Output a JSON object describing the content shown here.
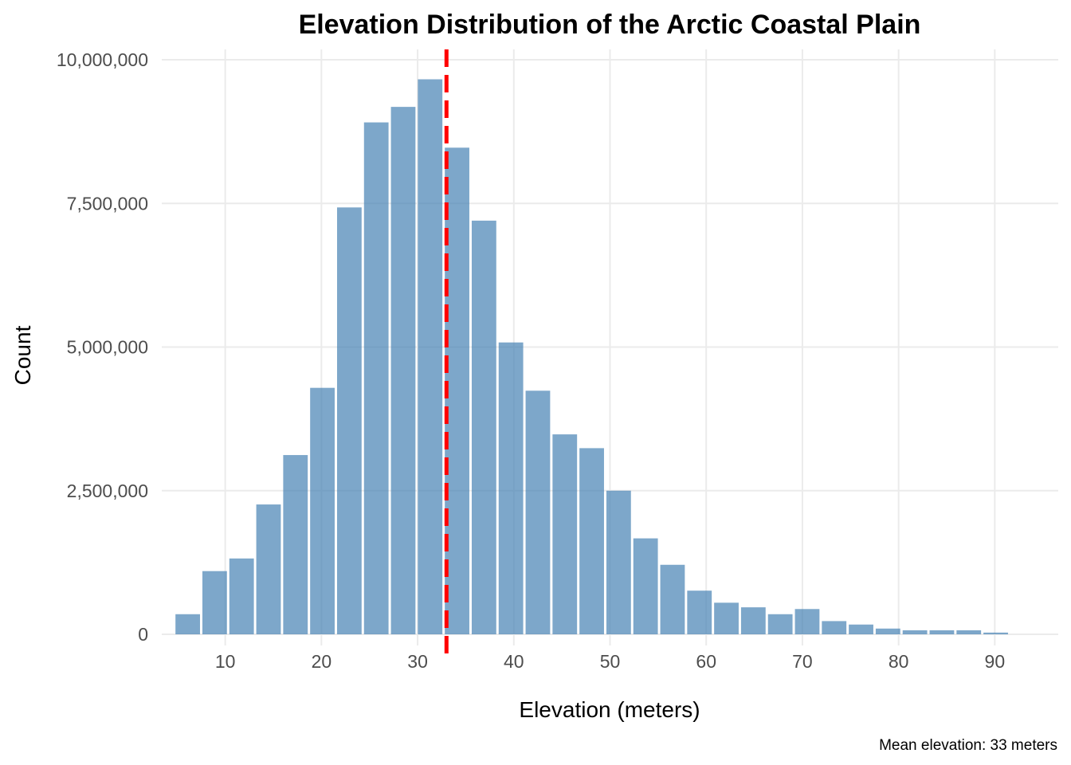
{
  "chart_data": {
    "type": "bar",
    "title": "Elevation Distribution of the Arctic Coastal Plain",
    "xlabel": "Elevation (meters)",
    "ylabel": "Count",
    "caption": "Mean elevation: 33 meters",
    "xlim": [
      3.4,
      96.6
    ],
    "ylim": [
      0,
      10000000
    ],
    "x_ticks": [
      10,
      20,
      30,
      40,
      50,
      60,
      70,
      80,
      90
    ],
    "x_tick_labels": [
      "10",
      "20",
      "30",
      "40",
      "50",
      "60",
      "70",
      "80",
      "90"
    ],
    "y_ticks": [
      0,
      2500000,
      5000000,
      7500000,
      10000000
    ],
    "y_tick_labels": [
      "0",
      "2,500,000",
      "5,000,000",
      "7,500,000",
      "10,000,000"
    ],
    "bin_width": 2.8,
    "bin_centers": [
      6.1,
      8.9,
      11.7,
      14.5,
      17.3,
      20.1,
      22.9,
      25.7,
      28.5,
      31.3,
      34.1,
      36.9,
      39.7,
      42.5,
      45.3,
      48.1,
      50.9,
      53.7,
      56.5,
      59.3,
      62.1,
      64.9,
      67.7,
      70.5,
      73.3,
      76.1,
      78.9,
      81.7,
      84.5,
      87.3,
      90.1
    ],
    "values": [
      350000,
      1100000,
      1320000,
      2260000,
      3120000,
      4290000,
      7430000,
      8910000,
      9180000,
      9660000,
      8470000,
      7200000,
      5080000,
      4240000,
      3480000,
      3240000,
      2500000,
      1670000,
      1210000,
      760000,
      550000,
      470000,
      350000,
      440000,
      230000,
      170000,
      100000,
      70000,
      70000,
      70000,
      30000
    ],
    "bar_color": "#4682B4",
    "bar_opacity": 0.7,
    "mean_line": {
      "x": 33,
      "color": "#FF0000",
      "style": "dashed"
    },
    "grid": true,
    "legend": "none"
  }
}
